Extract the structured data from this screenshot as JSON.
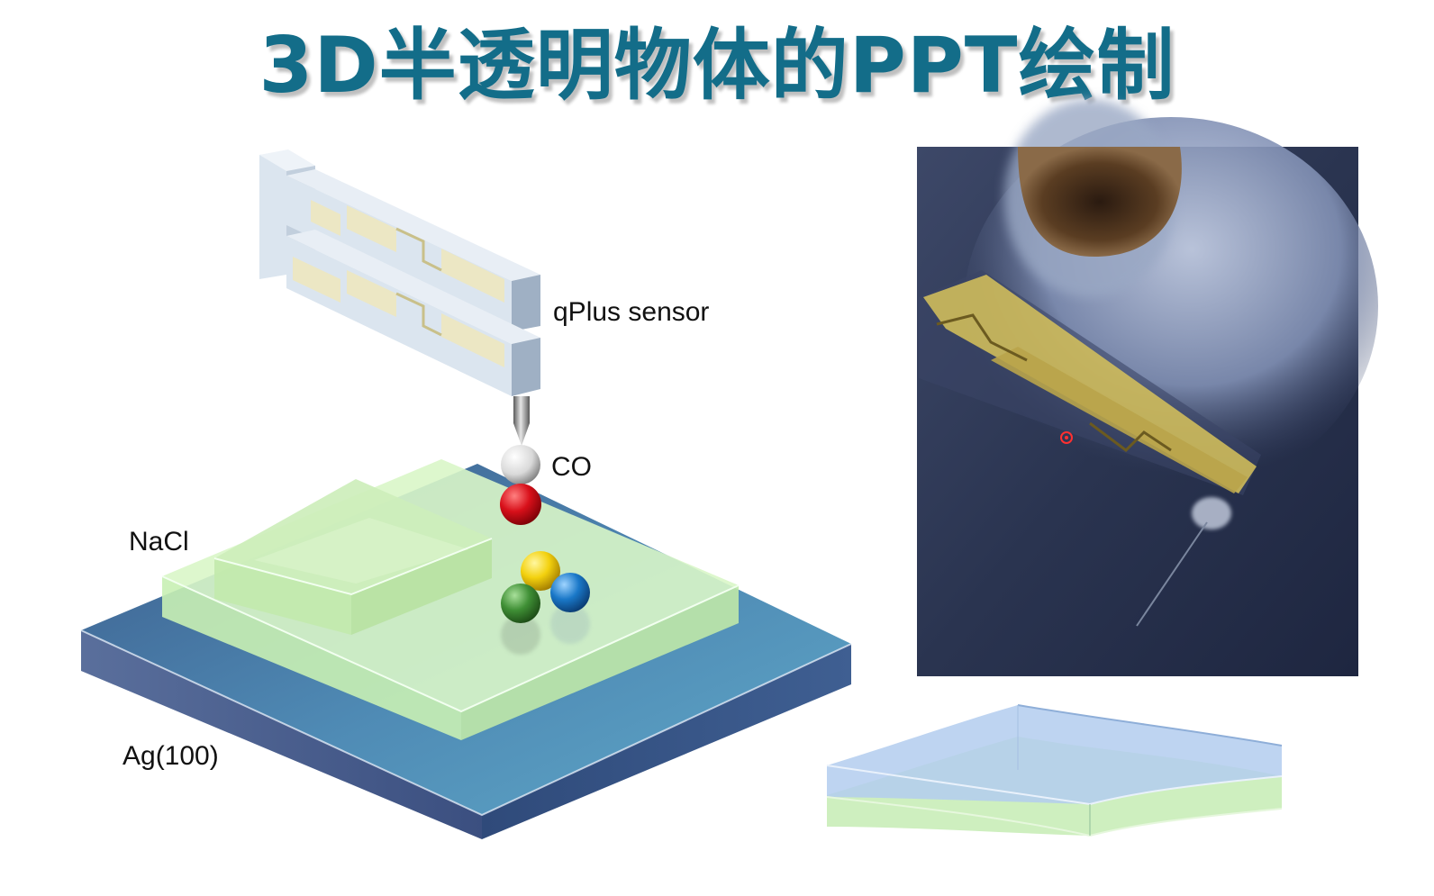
{
  "title": "3D半透明物体的PPT绘制",
  "labels": {
    "qplus": "qPlus sensor",
    "co": "CO",
    "nacl": "NaCl",
    "ag": "Ag(100)"
  },
  "colors": {
    "title": "#136d89",
    "silver_substrate": "#3d5a86",
    "nacl_green": "#d6f5c4",
    "sensor_blue": "#dde8f3",
    "gold": "#ece7c4",
    "sphere_white": "#f2f2f2",
    "sphere_red": "#d8101a",
    "sphere_yellow": "#f3d10e",
    "sphere_blue": "#1a78c8",
    "sphere_green": "#3f8f35",
    "slab_blue": "#b3cdef",
    "slab_green": "#c5ecb4"
  }
}
